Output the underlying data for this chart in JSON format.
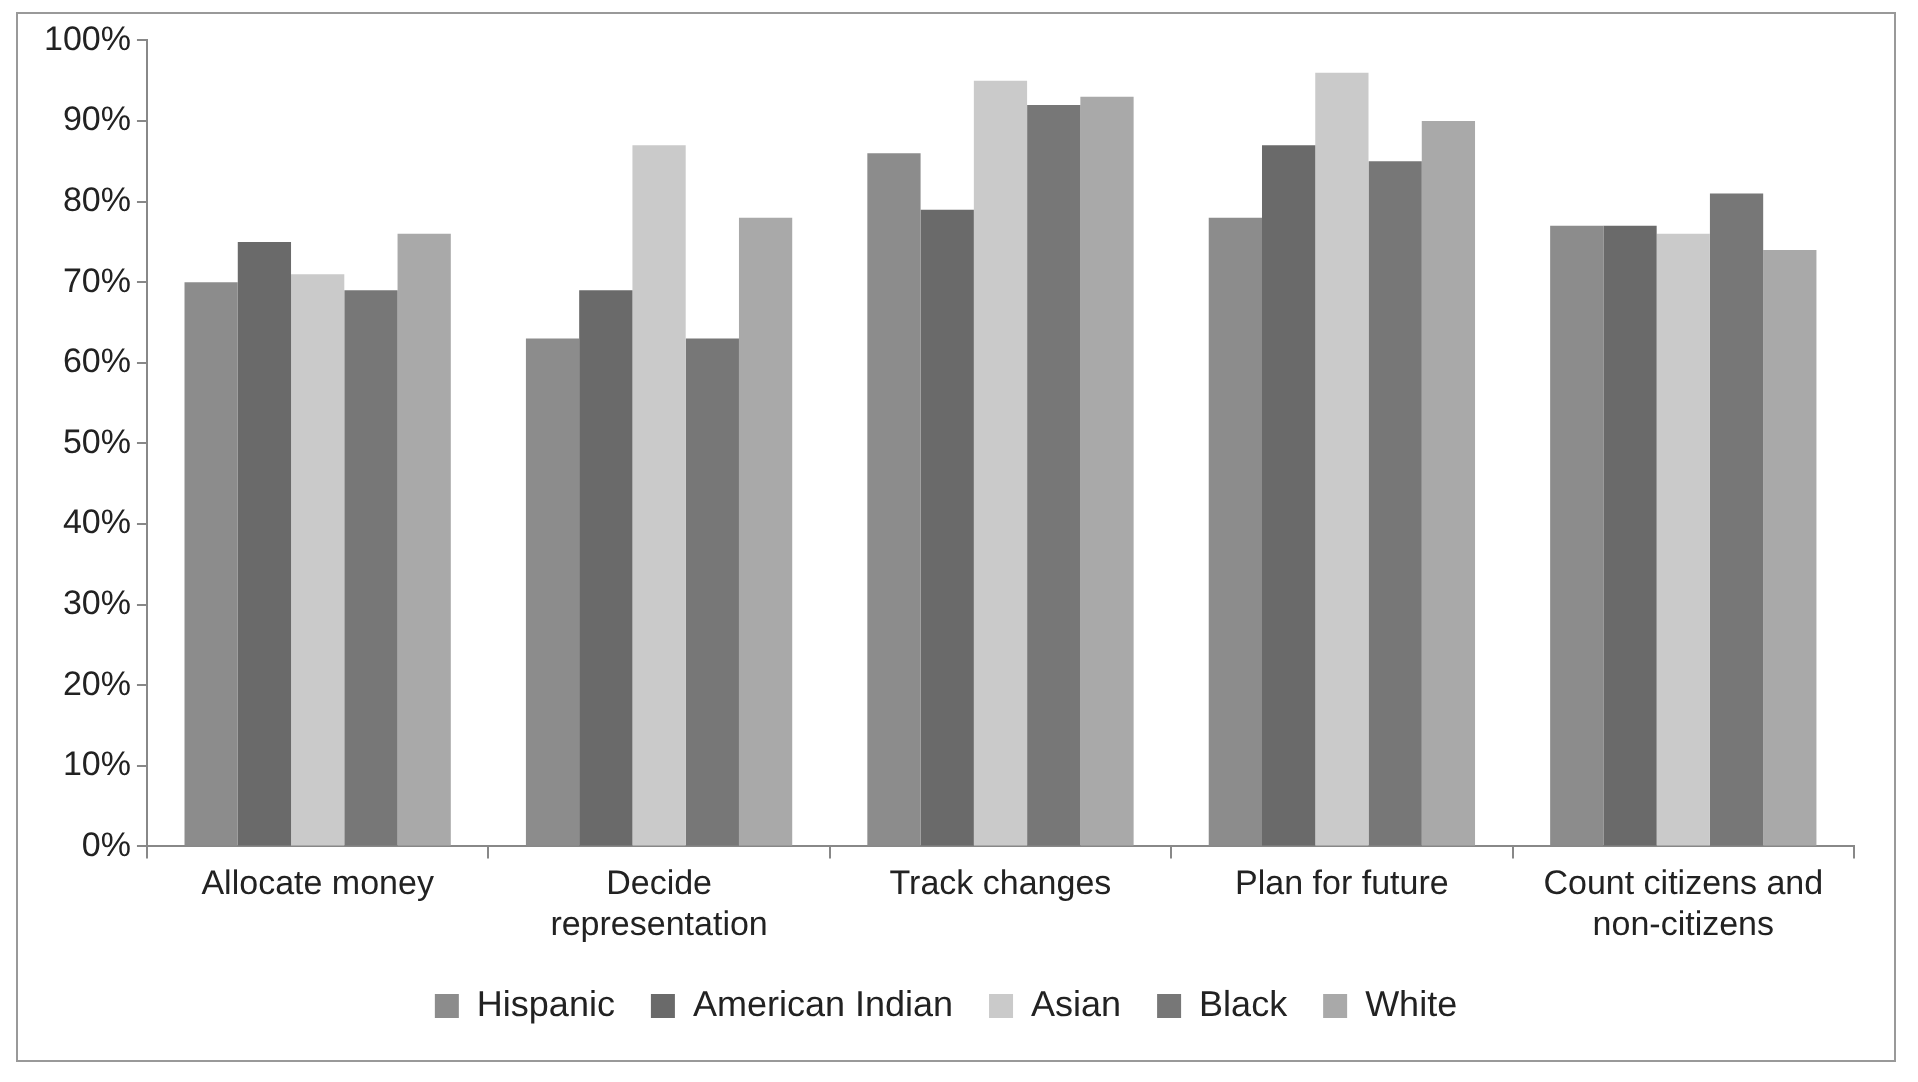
{
  "chart_data": {
    "type": "bar",
    "categories": [
      "Allocate money",
      "Decide representation",
      "Track changes",
      "Plan for future",
      "Count citizens and non-citizens"
    ],
    "series": [
      {
        "name": "Hispanic",
        "color": "#8c8c8c",
        "values": [
          70,
          63,
          86,
          78,
          77
        ]
      },
      {
        "name": "American Indian",
        "color": "#6a6a6a",
        "values": [
          75,
          69,
          79,
          87,
          77
        ]
      },
      {
        "name": "Asian",
        "color": "#cacaca",
        "values": [
          71,
          87,
          95,
          96,
          76
        ]
      },
      {
        "name": "Black",
        "color": "#777777",
        "values": [
          69,
          63,
          92,
          85,
          81
        ]
      },
      {
        "name": "White",
        "color": "#a9a9a9",
        "values": [
          76,
          78,
          93,
          90,
          74
        ]
      }
    ],
    "ylim": [
      0,
      100
    ],
    "yticks": [
      {
        "value": 0,
        "label": "0%"
      },
      {
        "value": 10,
        "label": "10%"
      },
      {
        "value": 20,
        "label": "20%"
      },
      {
        "value": 30,
        "label": "30%"
      },
      {
        "value": 40,
        "label": "40%"
      },
      {
        "value": 50,
        "label": "50%"
      },
      {
        "value": 60,
        "label": "60%"
      },
      {
        "value": 70,
        "label": "70%"
      },
      {
        "value": 80,
        "label": "80%"
      },
      {
        "value": 90,
        "label": "90%"
      },
      {
        "value": 100,
        "label": "100%"
      }
    ],
    "grid": false,
    "legend": "bottom"
  }
}
